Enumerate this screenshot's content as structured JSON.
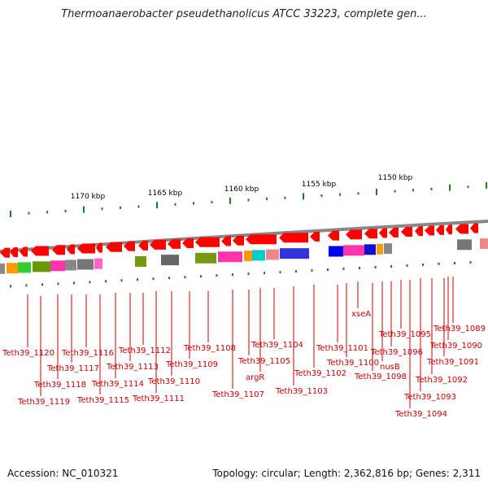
{
  "title": "Thermoanaerobacter pseudethanolicus ATCC 33223, complete gen...",
  "footer": {
    "accession": "Accession: NC_010321",
    "summary": "Topology: circular; Length: 2,362,816 bp; Genes: 2,311"
  },
  "colors": {
    "gene": "#ff0000",
    "tick": "#1e7a1e",
    "label": "#cc0000",
    "backbone": "#888888"
  },
  "scale": {
    "labels": [
      "1170 kbp",
      "1165 kbp",
      "1160 kbp",
      "1155 kbp",
      "1150 kbp"
    ]
  },
  "gene_labels": [
    "Teth39_1120",
    "Teth39_1119",
    "Teth39_1118",
    "Teth39_1117",
    "Teth39_1116",
    "Teth39_1115",
    "Teth39_1114",
    "Teth39_1113",
    "Teth39_1112",
    "Teth39_1111",
    "Teth39_1110",
    "Teth39_1109",
    "Teth39_1108",
    "Teth39_1107",
    "Teth39_1105",
    "argR",
    "Teth39_1104",
    "Teth39_1103",
    "Teth39_1102",
    "Teth39_1101",
    "Teth39_1100",
    "xseA",
    "Teth39_1098",
    "nusB",
    "Teth39_1096",
    "Teth39_1095",
    "Teth39_1094",
    "Teth39_1093",
    "Teth39_1092",
    "Teth39_1091",
    "Teth39_1090",
    "Teth39_1089"
  ]
}
